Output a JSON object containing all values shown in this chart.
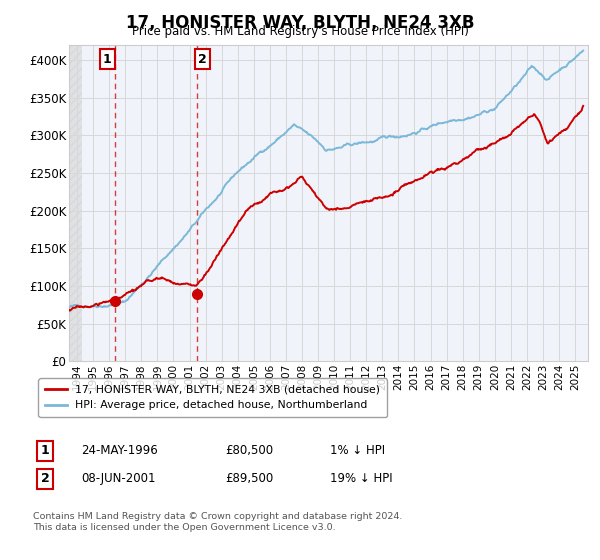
{
  "title": "17, HONISTER WAY, BLYTH, NE24 3XB",
  "subtitle": "Price paid vs. HM Land Registry's House Price Index (HPI)",
  "ylim": [
    0,
    420000
  ],
  "yticks": [
    0,
    50000,
    100000,
    150000,
    200000,
    250000,
    300000,
    350000,
    400000
  ],
  "ytick_labels": [
    "£0",
    "£50K",
    "£100K",
    "£150K",
    "£200K",
    "£250K",
    "£300K",
    "£350K",
    "£400K"
  ],
  "hpi_color": "#7bb8d8",
  "price_color": "#cc0000",
  "sale1_date": 1996.38,
  "sale1_price": 80500,
  "sale1_label": "1",
  "sale1_text": "24-MAY-1996",
  "sale1_amount": "£80,500",
  "sale1_hpi": "1% ↓ HPI",
  "sale2_date": 2001.44,
  "sale2_price": 89500,
  "sale2_label": "2",
  "sale2_text": "08-JUN-2001",
  "sale2_amount": "£89,500",
  "sale2_hpi": "19% ↓ HPI",
  "legend_label1": "17, HONISTER WAY, BLYTH, NE24 3XB (detached house)",
  "legend_label2": "HPI: Average price, detached house, Northumberland",
  "footer": "Contains HM Land Registry data © Crown copyright and database right 2024.\nThis data is licensed under the Open Government Licence v3.0.",
  "xmin": 1993.5,
  "xmax": 2025.8,
  "hatch_end": 1994.3
}
